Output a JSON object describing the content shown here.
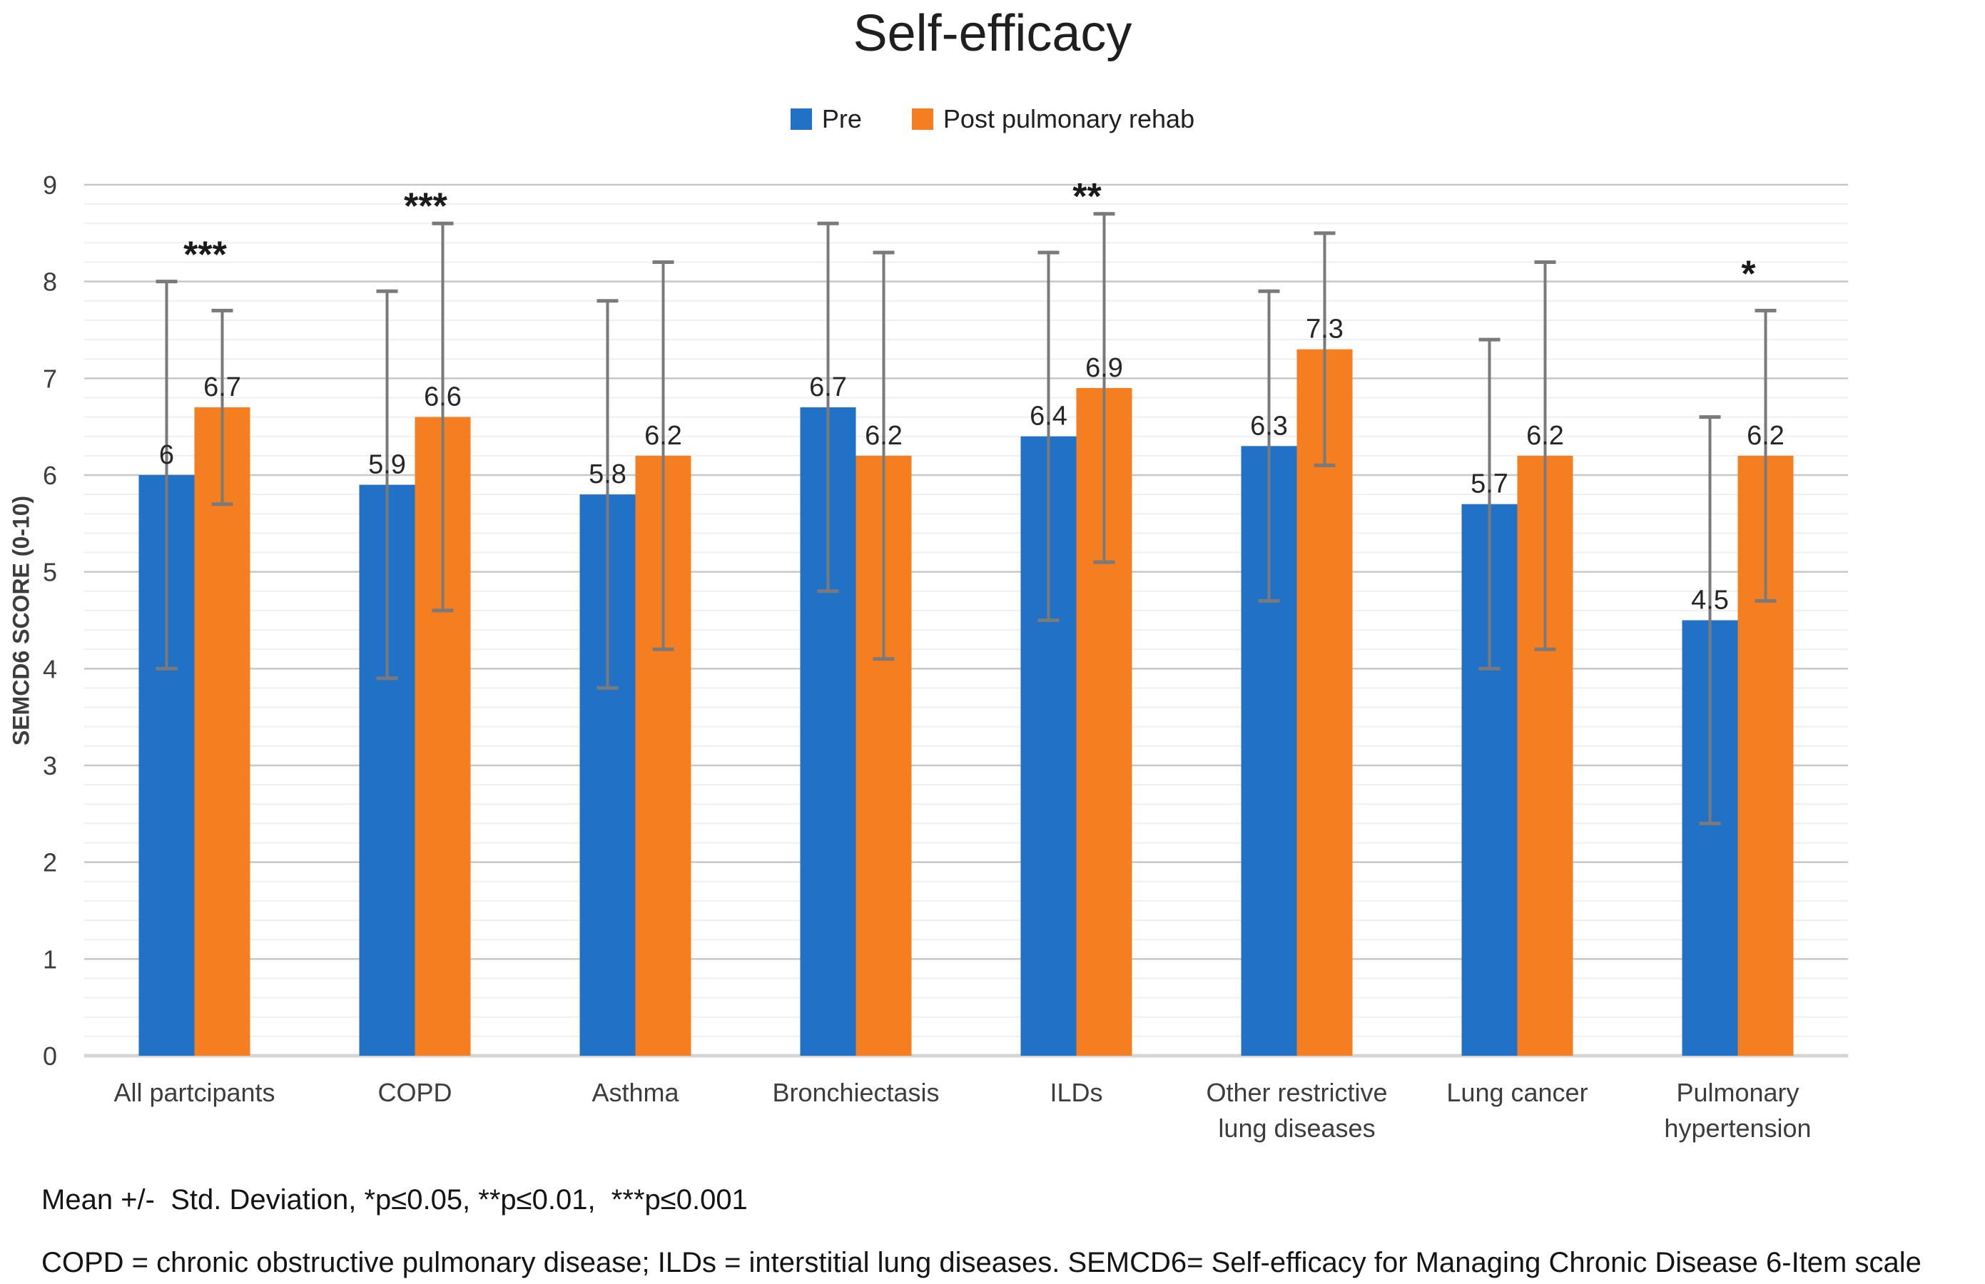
{
  "figure": {
    "footnote_line1": "Mean +/-  Std. Deviation, *p≤0.05, **p≤0.01,  ***p≤0.001",
    "footnote_line2": "COPD = chronic obstructive pulmonary disease; ILDs = interstitial lung diseases. SEMCD6= Self-efficacy for Managing Chronic Disease 6-Item scale"
  },
  "chart_data": {
    "type": "bar",
    "title": "Self-efficacy",
    "xlabel": "",
    "ylabel": "SEMCD6 SCORE (0-10)",
    "ylim": [
      0,
      9
    ],
    "y_major_tick": 1,
    "y_minor_gridline": 0.2,
    "grid": true,
    "legend_position": "top",
    "error_bar_note": "Mean +/- Std. Deviation",
    "categories": [
      "All partcipants",
      "COPD",
      "Asthma",
      "Bronchiectasis",
      "ILDs",
      "Other restrictive\nlung diseases",
      "Lung cancer",
      "Pulmonary\nhypertension"
    ],
    "series": [
      {
        "name": "Pre",
        "color": "#2171C7",
        "values": [
          6,
          5.9,
          5.8,
          6.7,
          6.4,
          6.3,
          5.7,
          4.5
        ],
        "labels": [
          "6",
          "5.9",
          "5.8",
          "6.7",
          "6.4",
          "6.3",
          "5.7",
          "4.5"
        ],
        "error_low": [
          4.0,
          3.9,
          3.8,
          4.8,
          4.5,
          4.7,
          4.0,
          2.4
        ],
        "error_high": [
          8.0,
          7.9,
          7.8,
          8.6,
          8.3,
          7.9,
          7.4,
          6.6
        ]
      },
      {
        "name": "Post pulmonary rehab",
        "color": "#F57E20",
        "values": [
          6.7,
          6.6,
          6.2,
          6.2,
          6.9,
          7.3,
          6.2,
          6.2
        ],
        "labels": [
          "6.7",
          "6.6",
          "6.2",
          "6.2",
          "6.9",
          "7.3",
          "6.2",
          "6.2"
        ],
        "error_low": [
          5.7,
          4.6,
          4.2,
          4.1,
          5.1,
          6.1,
          4.2,
          4.7
        ],
        "error_high": [
          7.7,
          8.6,
          8.2,
          8.3,
          8.7,
          8.5,
          8.2,
          7.7
        ]
      }
    ],
    "significance_markers": [
      {
        "index": 0,
        "category": "All partcipants",
        "label": "***",
        "y": 8.4
      },
      {
        "index": 1,
        "category": "COPD",
        "label": "***",
        "y": 8.9
      },
      {
        "index": 4,
        "category": "ILDs",
        "label": "**",
        "y": 9.0
      },
      {
        "index": 7,
        "category": "Pulmonary hypertension",
        "label": "*",
        "y": 8.2
      }
    ],
    "colors": {
      "error_bar": "#7A7A7A",
      "major_gridline": "#C8C8C8",
      "minor_gridline": "#EFEFEF",
      "baseline": "#D4D4D4",
      "tick_text": "#3d3d3d",
      "label_text": "#262626"
    }
  }
}
